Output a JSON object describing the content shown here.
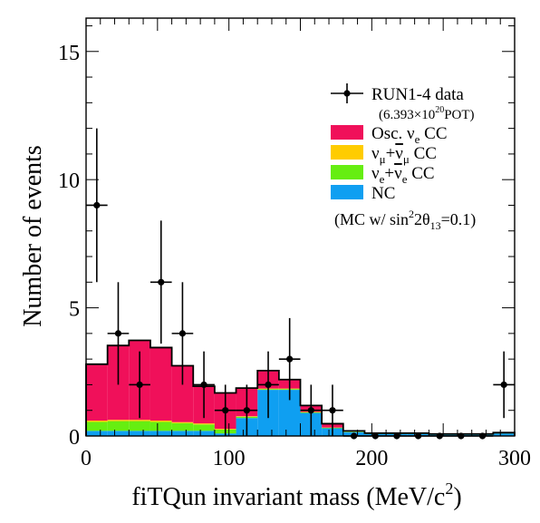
{
  "chart_data": {
    "type": "histogram",
    "title": "",
    "xlabel": "fiTQun invariant mass (MeV/c",
    "xlabel_sup": "2",
    "xlabel_close": ")",
    "ylabel": "Number of events",
    "xlim": [
      0,
      300
    ],
    "ylim": [
      0,
      16.3
    ],
    "xticks": [
      0,
      100,
      200,
      300
    ],
    "yticks": [
      0,
      5,
      10,
      15
    ],
    "bin_edges": [
      0,
      15,
      30,
      45,
      60,
      75,
      90,
      105,
      120,
      135,
      150,
      165,
      180,
      195,
      210,
      225,
      240,
      255,
      270,
      285,
      300
    ],
    "stack_series": [
      {
        "name_parts": [
          "NC"
        ],
        "color": "#0f9ff1",
        "values": [
          0.2,
          0.2,
          0.2,
          0.2,
          0.2,
          0.2,
          0.1,
          0.7,
          1.8,
          1.8,
          0.9,
          0.3,
          0.15,
          0.08,
          0.08,
          0.08,
          0.05,
          0.05,
          0.05,
          0.1
        ]
      },
      {
        "name_parts": [
          "ν",
          "e",
          "+",
          "ν",
          "e",
          " CC"
        ],
        "color": "#66ee11",
        "values": [
          0.35,
          0.38,
          0.38,
          0.35,
          0.3,
          0.25,
          0.15,
          0.05,
          0.03,
          0.03,
          0.02,
          0.02,
          0.02,
          0.02,
          0.02,
          0.02,
          0.02,
          0.02,
          0.02,
          0.02
        ]
      },
      {
        "name_parts": [
          "ν",
          "μ",
          "+",
          "ν",
          "μ",
          " CC"
        ],
        "color": "#ffcc00",
        "values": [
          0.05,
          0.05,
          0.05,
          0.05,
          0.04,
          0.04,
          0.03,
          0.02,
          0.02,
          0.02,
          0.02,
          0.01,
          0.01,
          0.01,
          0.01,
          0.01,
          0.01,
          0.01,
          0.01,
          0.01
        ]
      },
      {
        "name_parts": [
          "Osc. ν",
          "e",
          " CC"
        ],
        "color": "#f0105a",
        "values": [
          2.2,
          2.9,
          3.1,
          2.85,
          2.2,
          1.45,
          1.4,
          1.1,
          0.7,
          0.35,
          0.25,
          0.15,
          0.02,
          0.0,
          0.0,
          0.0,
          0.0,
          0.0,
          0.0,
          0.0
        ]
      }
    ],
    "data_series": {
      "name": "RUN1-4 data",
      "x": [
        7.5,
        22.5,
        37.5,
        52.5,
        67.5,
        82.5,
        97.5,
        112.5,
        127.5,
        142.5,
        157.5,
        172.5,
        187.5,
        202.5,
        217.5,
        232.5,
        247.5,
        262.5,
        277.5,
        292.5
      ],
      "y": [
        9,
        4,
        2,
        6,
        4,
        2,
        1,
        1,
        2,
        3,
        1,
        1,
        0,
        0,
        0,
        0,
        0,
        0,
        0,
        2
      ],
      "err_lo": [
        3,
        2,
        1.3,
        2.4,
        2,
        1.3,
        1,
        1,
        1.3,
        1.6,
        1,
        1,
        0,
        0,
        0,
        0,
        0,
        0,
        0,
        1.3
      ],
      "err_hi": [
        3,
        2,
        1.3,
        2.4,
        2,
        1.3,
        1,
        1,
        1.3,
        1.6,
        1,
        1,
        0,
        0,
        0,
        0,
        0,
        0,
        0,
        1.3
      ]
    },
    "legend": {
      "position": "top-right",
      "pot_prefix": "(6.393×10",
      "pot_sup": "20",
      "pot_suffix": "POT)",
      "mc_note_parts": [
        "(MC w/ sin",
        "2",
        "2θ",
        "13",
        "=0.1)"
      ]
    },
    "grid": false
  }
}
